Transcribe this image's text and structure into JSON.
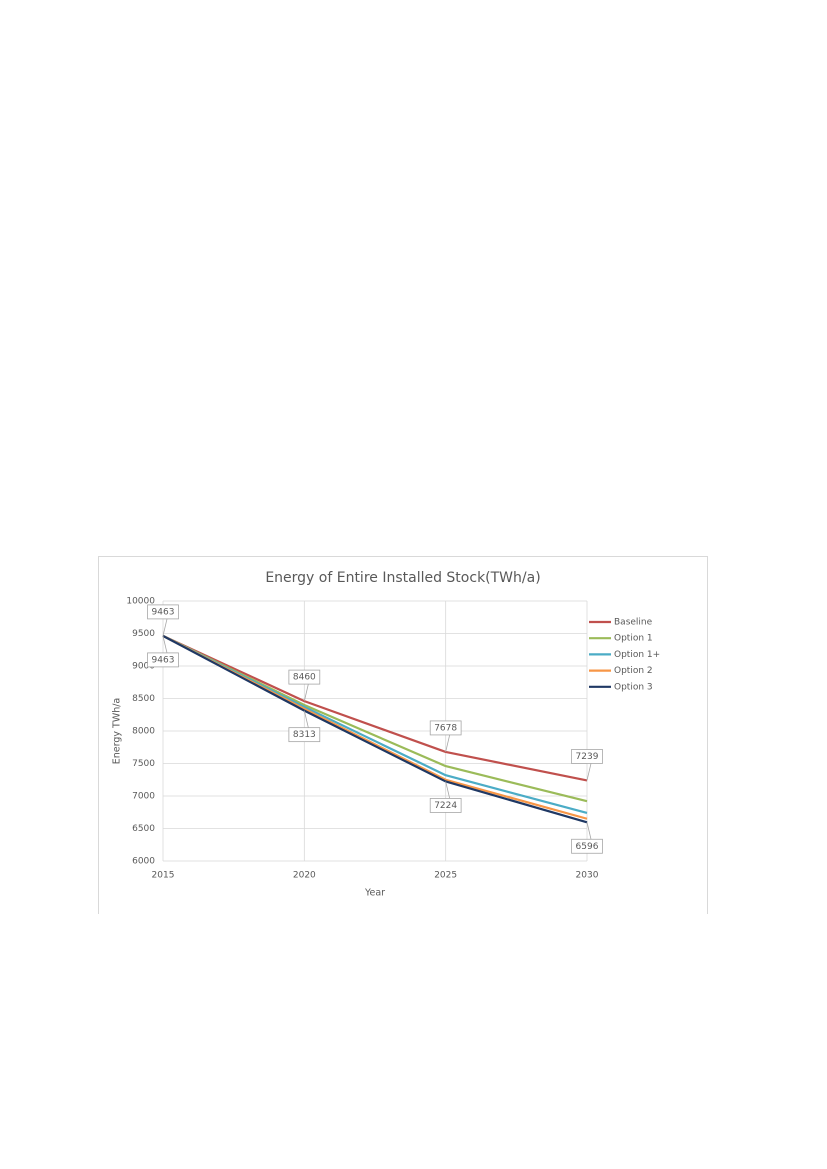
{
  "chart_data": {
    "type": "line",
    "title": "Energy of Entire Installed Stock(TWh/a)",
    "x_label": "Year",
    "y_label": "Energy TWh/a",
    "x": [
      2015,
      2020,
      2025,
      2030
    ],
    "xlim": [
      2015,
      2030
    ],
    "xticks": [
      2015,
      2020,
      2025,
      2030
    ],
    "ylim": [
      6000,
      10000
    ],
    "yticks": [
      6000,
      6500,
      7000,
      7500,
      8000,
      8500,
      9000,
      9500,
      10000
    ],
    "grid": true,
    "legend": "right",
    "series": [
      {
        "name": "Baseline",
        "color": "#c0504d",
        "values": [
          9463,
          8460,
          7678,
          7239
        ],
        "data_labels": "above"
      },
      {
        "name": "Option 1",
        "color": "#9bbb59",
        "values": [
          9463,
          8400,
          7460,
          6920
        ]
      },
      {
        "name": "Option 1+",
        "color": "#4bacc6",
        "values": [
          9463,
          8370,
          7320,
          6740
        ]
      },
      {
        "name": "Option 2",
        "color": "#f79646",
        "values": [
          9463,
          8340,
          7250,
          6650
        ]
      },
      {
        "name": "Option 3",
        "color": "#1f3864",
        "values": [
          9463,
          8313,
          7224,
          6596
        ],
        "data_labels": "below"
      }
    ]
  }
}
